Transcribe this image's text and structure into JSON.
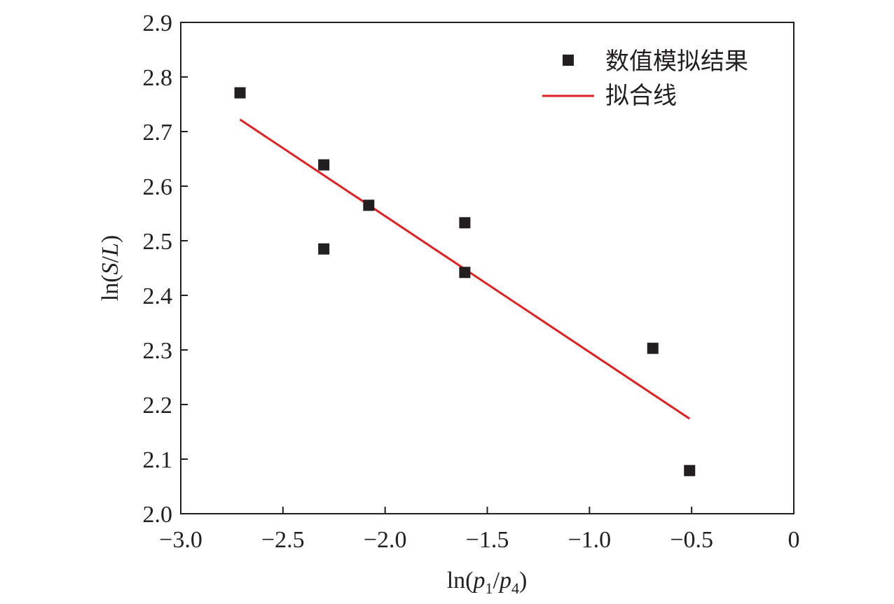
{
  "chart_data": {
    "type": "scatter",
    "xlabel": "ln(p1/p4)",
    "xlabel_parts": {
      "prefix": "ln(",
      "var1": "p",
      "sub1": "1",
      "slash": "/",
      "var2": "p",
      "sub2": "4",
      "suffix": ")"
    },
    "ylabel": "ln(S/L)",
    "ylabel_parts": {
      "prefix": "ln(",
      "var1": "S",
      "slash": "/",
      "var2": "L",
      "suffix": ")"
    },
    "xlim": [
      -3.0,
      0
    ],
    "ylim": [
      2.0,
      2.9
    ],
    "x_ticks": [
      -3.0,
      -2.5,
      -2.0,
      -1.5,
      -1.0,
      -0.5,
      0
    ],
    "x_tick_labels": [
      "−3.0",
      "−2.5",
      "−2.0",
      "−1.5",
      "−1.0",
      "−0.5",
      "0"
    ],
    "y_ticks": [
      2.0,
      2.1,
      2.2,
      2.3,
      2.4,
      2.5,
      2.6,
      2.7,
      2.8,
      2.9
    ],
    "y_tick_labels": [
      "2.0",
      "2.1",
      "2.2",
      "2.3",
      "2.4",
      "2.5",
      "2.6",
      "2.7",
      "2.8",
      "2.9"
    ],
    "grid": false,
    "legend_position": "top-right",
    "series": [
      {
        "name": "数值模拟结果",
        "kind": "scatter",
        "marker": "square",
        "color": "#231f20",
        "points": [
          {
            "x": -2.71,
            "y": 2.771
          },
          {
            "x": -2.3,
            "y": 2.639
          },
          {
            "x": -2.3,
            "y": 2.485
          },
          {
            "x": -2.08,
            "y": 2.565
          },
          {
            "x": -1.61,
            "y": 2.533
          },
          {
            "x": -1.61,
            "y": 2.442
          },
          {
            "x": -0.69,
            "y": 2.303
          },
          {
            "x": -0.51,
            "y": 2.079
          }
        ]
      },
      {
        "name": "拟合线",
        "kind": "line",
        "color": "#e02020",
        "points": [
          {
            "x": -2.71,
            "y": 2.722
          },
          {
            "x": -0.51,
            "y": 2.174
          }
        ]
      }
    ]
  }
}
